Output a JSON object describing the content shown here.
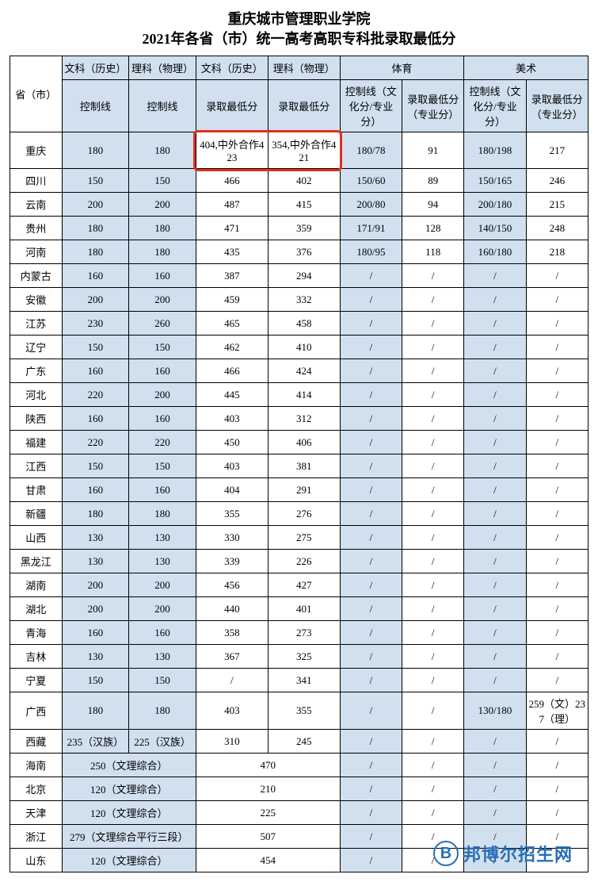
{
  "title_line1": "重庆城市管理职业学院",
  "title_line2": "2021年各省（市）统一高考高职专科批录取最低分",
  "headers": {
    "province": "省（市）",
    "wen_hist": "文科（历史）",
    "li_phys": "理科（物理）",
    "wen_hist2": "文科（历史）",
    "li_phys2": "理科（物理）",
    "pe": "体育",
    "art": "美术",
    "ctrl": "控制线",
    "min_score": "录取最低分",
    "pe_ctrl": "控制线（文化分/专业分）",
    "pe_min": "录取最低分（专业分）",
    "art_ctrl": "控制线（文化分/专业分）",
    "art_min": "录取最低分（专业分）"
  },
  "highlight": {
    "row": 0,
    "cols": [
      3,
      4
    ]
  },
  "rows": [
    {
      "prov": "重庆",
      "c1": "180",
      "c2": "180",
      "c3": "404,中外合作423",
      "c4": "354,中外合作421",
      "c5": "180/78",
      "c6": "91",
      "c7": "180/198",
      "c8": "217",
      "tall": true
    },
    {
      "prov": "四川",
      "c1": "150",
      "c2": "150",
      "c3": "466",
      "c4": "402",
      "c5": "150/60",
      "c6": "89",
      "c7": "150/165",
      "c8": "246"
    },
    {
      "prov": "云南",
      "c1": "200",
      "c2": "200",
      "c3": "487",
      "c4": "415",
      "c5": "200/80",
      "c6": "94",
      "c7": "200/180",
      "c8": "215"
    },
    {
      "prov": "贵州",
      "c1": "180",
      "c2": "180",
      "c3": "471",
      "c4": "359",
      "c5": "171/91",
      "c6": "128",
      "c7": "140/150",
      "c8": "248"
    },
    {
      "prov": "河南",
      "c1": "180",
      "c2": "180",
      "c3": "435",
      "c4": "376",
      "c5": "180/95",
      "c6": "118",
      "c7": "160/180",
      "c8": "218"
    },
    {
      "prov": "内蒙古",
      "c1": "160",
      "c2": "160",
      "c3": "387",
      "c4": "294",
      "c5": "/",
      "c6": "/",
      "c7": "/",
      "c8": "/"
    },
    {
      "prov": "安徽",
      "c1": "200",
      "c2": "200",
      "c3": "459",
      "c4": "332",
      "c5": "/",
      "c6": "/",
      "c7": "/",
      "c8": "/"
    },
    {
      "prov": "江苏",
      "c1": "230",
      "c2": "260",
      "c3": "465",
      "c4": "458",
      "c5": "/",
      "c6": "/",
      "c7": "/",
      "c8": "/"
    },
    {
      "prov": "辽宁",
      "c1": "150",
      "c2": "150",
      "c3": "462",
      "c4": "410",
      "c5": "/",
      "c6": "/",
      "c7": "/",
      "c8": "/"
    },
    {
      "prov": "广东",
      "c1": "160",
      "c2": "160",
      "c3": "466",
      "c4": "424",
      "c5": "/",
      "c6": "/",
      "c7": "/",
      "c8": "/"
    },
    {
      "prov": "河北",
      "c1": "220",
      "c2": "200",
      "c3": "445",
      "c4": "414",
      "c5": "/",
      "c6": "/",
      "c7": "/",
      "c8": "/"
    },
    {
      "prov": "陕西",
      "c1": "160",
      "c2": "160",
      "c3": "403",
      "c4": "312",
      "c5": "/",
      "c6": "/",
      "c7": "/",
      "c8": "/"
    },
    {
      "prov": "福建",
      "c1": "220",
      "c2": "220",
      "c3": "450",
      "c4": "406",
      "c5": "/",
      "c6": "/",
      "c7": "/",
      "c8": "/"
    },
    {
      "prov": "江西",
      "c1": "150",
      "c2": "150",
      "c3": "403",
      "c4": "381",
      "c5": "/",
      "c6": "/",
      "c7": "/",
      "c8": "/"
    },
    {
      "prov": "甘肃",
      "c1": "160",
      "c2": "160",
      "c3": "404",
      "c4": "291",
      "c5": "/",
      "c6": "/",
      "c7": "/",
      "c8": "/"
    },
    {
      "prov": "新疆",
      "c1": "180",
      "c2": "180",
      "c3": "355",
      "c4": "276",
      "c5": "/",
      "c6": "/",
      "c7": "/",
      "c8": "/"
    },
    {
      "prov": "山西",
      "c1": "130",
      "c2": "130",
      "c3": "330",
      "c4": "275",
      "c5": "/",
      "c6": "/",
      "c7": "/",
      "c8": "/"
    },
    {
      "prov": "黑龙江",
      "c1": "130",
      "c2": "130",
      "c3": "339",
      "c4": "226",
      "c5": "/",
      "c6": "/",
      "c7": "/",
      "c8": "/"
    },
    {
      "prov": "湖南",
      "c1": "200",
      "c2": "200",
      "c3": "456",
      "c4": "427",
      "c5": "/",
      "c6": "/",
      "c7": "/",
      "c8": "/"
    },
    {
      "prov": "湖北",
      "c1": "200",
      "c2": "200",
      "c3": "440",
      "c4": "401",
      "c5": "/",
      "c6": "/",
      "c7": "/",
      "c8": "/"
    },
    {
      "prov": "青海",
      "c1": "160",
      "c2": "160",
      "c3": "358",
      "c4": "273",
      "c5": "/",
      "c6": "/",
      "c7": "/",
      "c8": "/"
    },
    {
      "prov": "吉林",
      "c1": "130",
      "c2": "130",
      "c3": "367",
      "c4": "325",
      "c5": "/",
      "c6": "/",
      "c7": "/",
      "c8": "/"
    },
    {
      "prov": "宁夏",
      "c1": "150",
      "c2": "150",
      "c3": "/",
      "c4": "341",
      "c5": "/",
      "c6": "/",
      "c7": "/",
      "c8": "/"
    },
    {
      "prov": "广西",
      "c1": "180",
      "c2": "180",
      "c3": "403",
      "c4": "355",
      "c5": "/",
      "c6": "/",
      "c7": "130/180",
      "c8": "259（文）237（理）",
      "tall": true
    },
    {
      "prov": "西藏",
      "c1": "235（汉族）",
      "c2": "225（汉族）",
      "c3": "310",
      "c4": "245",
      "c5": "/",
      "c6": "/",
      "c7": "/",
      "c8": "/"
    }
  ],
  "merged_rows": [
    {
      "prov": "海南",
      "comb": "250（文理综合）",
      "score": "470",
      "c5": "/",
      "c6": "/",
      "c7": "/",
      "c8": "/"
    },
    {
      "prov": "北京",
      "comb": "120（文理综合）",
      "score": "210",
      "c5": "/",
      "c6": "/",
      "c7": "/",
      "c8": "/"
    },
    {
      "prov": "天津",
      "comb": "120（文理综合）",
      "score": "225",
      "c5": "/",
      "c6": "/",
      "c7": "/",
      "c8": "/"
    },
    {
      "prov": "浙江",
      "comb": "279（文理综合平行三段）",
      "score": "507",
      "c5": "/",
      "c6": "/",
      "c7": "/",
      "c8": "/"
    },
    {
      "prov": "山东",
      "comb": "120（文理综合）",
      "score": "454",
      "c5": "/",
      "c6": "/",
      "c7": "/",
      "c8": "/"
    }
  ],
  "watermark": {
    "letter": "B",
    "text": "邦博尔招生网"
  },
  "colors": {
    "header_bg": "#d0e0ee",
    "border": "#000000",
    "highlight": "#e03020",
    "wm": "#2a6fb5"
  }
}
